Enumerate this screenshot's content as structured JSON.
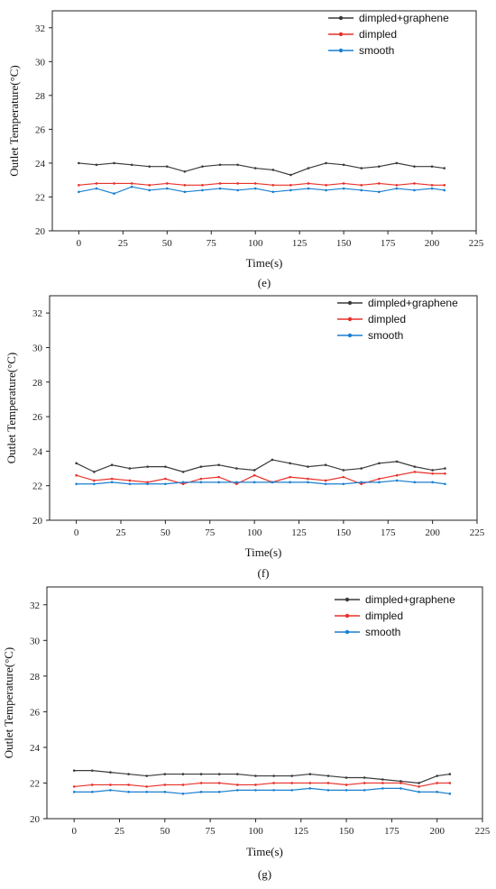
{
  "chart_data": [
    {
      "type": "line",
      "panel_label": "(e)",
      "xlabel": "Time(s)",
      "ylabel": "Outlet Temperature(°C)",
      "xlim": [
        -15,
        225
      ],
      "ylim": [
        20,
        33
      ],
      "xticks": [
        0,
        25,
        50,
        75,
        100,
        125,
        150,
        175,
        200,
        225
      ],
      "yticks": [
        20,
        22,
        24,
        26,
        28,
        30,
        32
      ],
      "legend_position": "top-right",
      "series": [
        {
          "name": "dimpled+graphene",
          "color": "#3a3a3a",
          "x": [
            0,
            10,
            20,
            30,
            40,
            50,
            60,
            70,
            80,
            90,
            100,
            110,
            120,
            130,
            140,
            150,
            160,
            170,
            180,
            190,
            200,
            207
          ],
          "y": [
            24.0,
            23.9,
            24.0,
            23.9,
            23.8,
            23.8,
            23.5,
            23.8,
            23.9,
            23.9,
            23.7,
            23.6,
            23.3,
            23.7,
            24.0,
            23.9,
            23.7,
            23.8,
            24.0,
            23.8,
            23.8,
            23.7
          ]
        },
        {
          "name": "dimpled",
          "color": "#e8302a",
          "x": [
            0,
            10,
            20,
            30,
            40,
            50,
            60,
            70,
            80,
            90,
            100,
            110,
            120,
            130,
            140,
            150,
            160,
            170,
            180,
            190,
            200,
            207
          ],
          "y": [
            22.7,
            22.8,
            22.8,
            22.8,
            22.7,
            22.8,
            22.7,
            22.7,
            22.8,
            22.8,
            22.8,
            22.7,
            22.7,
            22.8,
            22.7,
            22.8,
            22.7,
            22.8,
            22.7,
            22.8,
            22.7,
            22.7
          ]
        },
        {
          "name": "smooth",
          "color": "#1a7fd0",
          "x": [
            0,
            10,
            20,
            30,
            40,
            50,
            60,
            70,
            80,
            90,
            100,
            110,
            120,
            130,
            140,
            150,
            160,
            170,
            180,
            190,
            200,
            207
          ],
          "y": [
            22.3,
            22.5,
            22.2,
            22.6,
            22.4,
            22.5,
            22.3,
            22.4,
            22.5,
            22.4,
            22.5,
            22.3,
            22.4,
            22.5,
            22.4,
            22.5,
            22.4,
            22.3,
            22.5,
            22.4,
            22.5,
            22.4
          ]
        }
      ]
    },
    {
      "type": "line",
      "panel_label": "(f)",
      "xlabel": "Time(s)",
      "ylabel": "Outlet Temperature(°C)",
      "xlim": [
        -15,
        225
      ],
      "ylim": [
        20,
        33
      ],
      "xticks": [
        0,
        25,
        50,
        75,
        100,
        125,
        150,
        175,
        200,
        225
      ],
      "yticks": [
        20,
        22,
        24,
        26,
        28,
        30,
        32
      ],
      "legend_position": "top-right",
      "series": [
        {
          "name": "dimpled+graphene",
          "color": "#3a3a3a",
          "x": [
            0,
            10,
            20,
            30,
            40,
            50,
            60,
            70,
            80,
            90,
            100,
            110,
            120,
            130,
            140,
            150,
            160,
            170,
            180,
            190,
            200,
            207
          ],
          "y": [
            23.3,
            22.8,
            23.2,
            23.0,
            23.1,
            23.1,
            22.8,
            23.1,
            23.2,
            23.0,
            22.9,
            23.5,
            23.3,
            23.1,
            23.2,
            22.9,
            23.0,
            23.3,
            23.4,
            23.1,
            22.9,
            23.0
          ]
        },
        {
          "name": "dimpled",
          "color": "#e8302a",
          "x": [
            0,
            10,
            20,
            30,
            40,
            50,
            60,
            70,
            80,
            90,
            100,
            110,
            120,
            130,
            140,
            150,
            160,
            170,
            180,
            190,
            200,
            207
          ],
          "y": [
            22.6,
            22.3,
            22.4,
            22.3,
            22.2,
            22.4,
            22.1,
            22.4,
            22.5,
            22.1,
            22.6,
            22.2,
            22.5,
            22.4,
            22.3,
            22.5,
            22.1,
            22.4,
            22.6,
            22.8,
            22.7,
            22.7
          ]
        },
        {
          "name": "smooth",
          "color": "#1a7fd0",
          "x": [
            0,
            10,
            20,
            30,
            40,
            50,
            60,
            70,
            80,
            90,
            100,
            110,
            120,
            130,
            140,
            150,
            160,
            170,
            180,
            190,
            200,
            207
          ],
          "y": [
            22.1,
            22.1,
            22.2,
            22.1,
            22.1,
            22.1,
            22.2,
            22.2,
            22.2,
            22.2,
            22.2,
            22.2,
            22.2,
            22.2,
            22.1,
            22.1,
            22.2,
            22.2,
            22.3,
            22.2,
            22.2,
            22.1
          ]
        }
      ]
    },
    {
      "type": "line",
      "panel_label": "(g)",
      "xlabel": "Time(s)",
      "ylabel": "Outlet Temperature(°C)",
      "xlim": [
        -15,
        225
      ],
      "ylim": [
        20,
        33
      ],
      "xticks": [
        0,
        25,
        50,
        75,
        100,
        125,
        150,
        175,
        200,
        225
      ],
      "yticks": [
        20,
        22,
        24,
        26,
        28,
        30,
        32
      ],
      "legend_position": "top-right",
      "series": [
        {
          "name": "dimpled+graphene",
          "color": "#3a3a3a",
          "x": [
            0,
            10,
            20,
            30,
            40,
            50,
            60,
            70,
            80,
            90,
            100,
            110,
            120,
            130,
            140,
            150,
            160,
            170,
            180,
            190,
            200,
            207
          ],
          "y": [
            22.7,
            22.7,
            22.6,
            22.5,
            22.4,
            22.5,
            22.5,
            22.5,
            22.5,
            22.5,
            22.4,
            22.4,
            22.4,
            22.5,
            22.4,
            22.3,
            22.3,
            22.2,
            22.1,
            22.0,
            22.4,
            22.5
          ]
        },
        {
          "name": "dimpled",
          "color": "#e8302a",
          "x": [
            0,
            10,
            20,
            30,
            40,
            50,
            60,
            70,
            80,
            90,
            100,
            110,
            120,
            130,
            140,
            150,
            160,
            170,
            180,
            190,
            200,
            207
          ],
          "y": [
            21.8,
            21.9,
            21.9,
            21.9,
            21.8,
            21.9,
            21.9,
            22.0,
            22.0,
            21.9,
            21.9,
            22.0,
            22.0,
            22.0,
            22.0,
            21.9,
            22.0,
            22.0,
            22.0,
            21.8,
            22.0,
            22.0
          ]
        },
        {
          "name": "smooth",
          "color": "#1a7fd0",
          "x": [
            0,
            10,
            20,
            30,
            40,
            50,
            60,
            70,
            80,
            90,
            100,
            110,
            120,
            130,
            140,
            150,
            160,
            170,
            180,
            190,
            200,
            207
          ],
          "y": [
            21.5,
            21.5,
            21.6,
            21.5,
            21.5,
            21.5,
            21.4,
            21.5,
            21.5,
            21.6,
            21.6,
            21.6,
            21.6,
            21.7,
            21.6,
            21.6,
            21.6,
            21.7,
            21.7,
            21.5,
            21.5,
            21.4
          ]
        }
      ]
    }
  ]
}
